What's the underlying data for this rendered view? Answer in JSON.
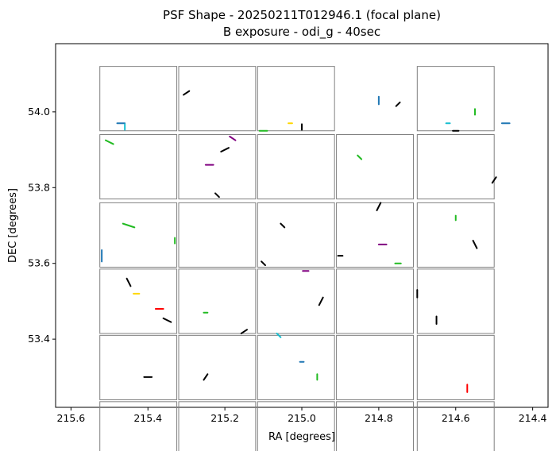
{
  "chart_data": {
    "type": "scatter",
    "title_line1": "PSF Shape - 20250211T012946.1 (focal plane)",
    "title_line2": "B exposure - odi_g - 40sec",
    "xlabel": "RA [degrees]",
    "ylabel": "DEC [degrees]",
    "xlim": [
      215.64,
      214.36
    ],
    "ylim": [
      53.22,
      54.18
    ],
    "x_inverted": true,
    "grid": false,
    "x_ticks": [
      "215.6",
      "215.4",
      "215.2",
      "215.0",
      "214.8",
      "214.6",
      "214.4"
    ],
    "x_tick_values": [
      215.6,
      215.4,
      215.2,
      215.0,
      214.8,
      214.6,
      214.4
    ],
    "y_ticks": [
      "53.4",
      "53.6",
      "53.8",
      "54.0"
    ],
    "y_tick_values": [
      53.4,
      53.6,
      53.8,
      54.0
    ],
    "ota_outline_color": "#808080",
    "ota_grid": {
      "columns": 5,
      "rows": 6,
      "missing": [
        [
          3,
          0
        ]
      ],
      "ra_centers": [
        215.425,
        215.22,
        215.015,
        214.81,
        214.6
      ],
      "dec_centers": [
        54.035,
        53.855,
        53.675,
        53.5,
        53.325,
        53.15
      ],
      "ra_width": 0.2,
      "dec_height": 0.17
    },
    "series": [
      {
        "color": "#000000",
        "points": [
          [
            215.45,
            53.55,
            0.01,
            0.02
          ],
          [
            215.2,
            53.9,
            0.02,
            -0.01
          ],
          [
            215.05,
            53.7,
            0.01,
            0.01
          ],
          [
            214.8,
            53.75,
            -0.01,
            0.02
          ],
          [
            214.6,
            53.95,
            0.015,
            0.0
          ],
          [
            215.35,
            53.45,
            0.02,
            0.01
          ],
          [
            215.15,
            53.42,
            -0.015,
            0.01
          ],
          [
            214.95,
            53.5,
            0.01,
            -0.02
          ],
          [
            214.7,
            53.52,
            0.0,
            0.02
          ],
          [
            215.3,
            54.05,
            0.015,
            -0.01
          ],
          [
            215.1,
            53.6,
            -0.01,
            -0.01
          ],
          [
            214.55,
            53.65,
            0.01,
            0.02
          ],
          [
            215.4,
            53.3,
            0.02,
            0.0
          ],
          [
            215.25,
            53.3,
            -0.01,
            0.015
          ],
          [
            214.9,
            53.62,
            0.012,
            0.0
          ],
          [
            214.75,
            54.02,
            -0.01,
            0.01
          ],
          [
            215.0,
            53.96,
            0.0,
            0.015
          ],
          [
            214.5,
            53.82,
            0.01,
            -0.015
          ],
          [
            215.22,
            53.78,
            0.01,
            0.01
          ],
          [
            214.65,
            53.45,
            0.0,
            0.02
          ]
        ]
      },
      {
        "color": "#22bb22",
        "points": [
          [
            215.5,
            53.92,
            0.02,
            0.01
          ],
          [
            215.33,
            53.66,
            0.0,
            0.015
          ],
          [
            215.1,
            53.95,
            0.02,
            0.0
          ],
          [
            214.85,
            53.88,
            0.01,
            0.01
          ],
          [
            214.6,
            53.72,
            0.0,
            0.012
          ],
          [
            215.45,
            53.7,
            0.03,
            0.01
          ],
          [
            215.25,
            53.47,
            0.01,
            0.0
          ],
          [
            214.96,
            53.3,
            0.0,
            0.015
          ],
          [
            214.75,
            53.6,
            0.015,
            0.0
          ],
          [
            214.55,
            54.0,
            0.0,
            0.015
          ]
        ]
      },
      {
        "color": "#1f77b4",
        "points": [
          [
            215.52,
            53.62,
            0.0,
            0.03
          ],
          [
            215.47,
            53.97,
            0.02,
            0.0
          ],
          [
            214.8,
            54.03,
            0.0,
            0.02
          ],
          [
            215.0,
            53.34,
            0.01,
            0.0
          ],
          [
            214.47,
            53.97,
            0.02,
            0.0
          ]
        ]
      },
      {
        "color": "#800080",
        "points": [
          [
            215.24,
            53.86,
            0.02,
            0.0
          ],
          [
            214.99,
            53.58,
            0.015,
            0.0
          ],
          [
            214.79,
            53.65,
            0.02,
            0.0
          ],
          [
            215.18,
            53.93,
            0.015,
            0.01
          ]
        ]
      },
      {
        "color": "#17becf",
        "points": [
          [
            215.46,
            53.96,
            0.0,
            0.015
          ],
          [
            215.06,
            53.41,
            0.01,
            0.01
          ],
          [
            214.62,
            53.97,
            0.01,
            0.0
          ]
        ]
      },
      {
        "color": "#ff0000",
        "points": [
          [
            215.37,
            53.48,
            0.02,
            0.0
          ],
          [
            214.57,
            53.27,
            0.0,
            0.02
          ]
        ]
      },
      {
        "color": "#ffd700",
        "points": [
          [
            215.43,
            53.52,
            0.015,
            0.0
          ],
          [
            215.03,
            53.97,
            0.01,
            0.0
          ]
        ]
      }
    ]
  }
}
